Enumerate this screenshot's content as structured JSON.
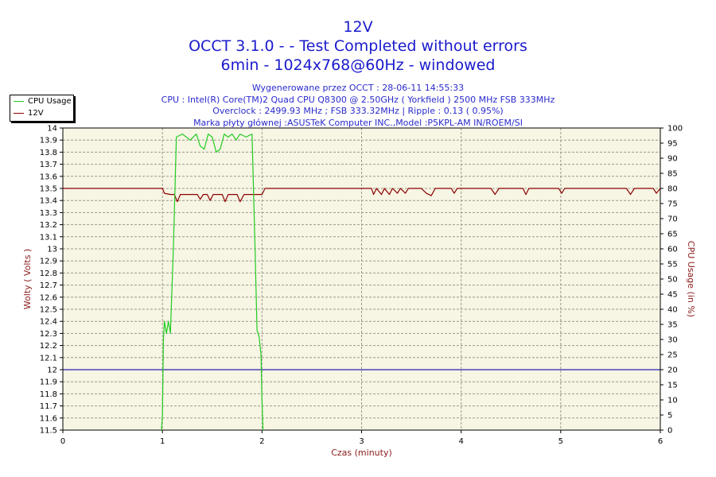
{
  "titles": {
    "line1": "12V",
    "line2": "OCCT 3.1.0 -  - Test Completed without errors",
    "line3": "6min - 1024x768@60Hz - windowed"
  },
  "info": {
    "generated": "Wygenerowane przez OCCT : 28-06-11 14:55:33",
    "cpu": "CPU : Intel(R) Core(TM)2 Quad CPU Q8300 @ 2.50GHz ( Yorkfield ) 2500 MHz FSB 333MHz",
    "overclock": "Overclock : 2499.93 MHz ; FSB 333.32MHz | Ripple : 0.13 ( 0.95%)",
    "motherboard": "Marka płyty głównej :ASUSTeK Computer INC.,Model :P5KPL-AM IN/ROEM/SI"
  },
  "legend": [
    {
      "label": "CPU Usage",
      "color": "#22cc22"
    },
    {
      "label": "12V",
      "color": "#8b0000"
    }
  ],
  "chart_data": {
    "type": "line",
    "xlabel": "Czas (minuty)",
    "ylabel_left": "Wolty ( Volts )",
    "ylabel_right": "CPU Usage (in %)",
    "xlim": [
      0,
      6
    ],
    "ylim_left": [
      11.5,
      14
    ],
    "ylim_right": [
      0,
      100
    ],
    "x_ticks": [
      "0",
      "1",
      "2",
      "3",
      "4",
      "5",
      "6"
    ],
    "y_ticks_left": [
      "11.5",
      "11.6",
      "11.7",
      "11.8",
      "11.9",
      "12",
      "12.1",
      "12.2",
      "12.3",
      "12.4",
      "12.5",
      "12.6",
      "12.7",
      "12.8",
      "12.9",
      "13",
      "13.1",
      "13.2",
      "13.3",
      "13.4",
      "13.5",
      "13.6",
      "13.7",
      "13.8",
      "13.9",
      "14"
    ],
    "y_ticks_right": [
      "0",
      "5",
      "10",
      "15",
      "20",
      "25",
      "30",
      "35",
      "40",
      "45",
      "50",
      "55",
      "60",
      "65",
      "70",
      "75",
      "80",
      "85",
      "90",
      "95",
      "100"
    ],
    "grid": true,
    "reference_line": {
      "axis": "left",
      "value": 12,
      "color": "#2222aa"
    },
    "series": [
      {
        "name": "12V",
        "axis": "left",
        "color": "#8b0000",
        "points": [
          [
            0,
            13.5
          ],
          [
            1,
            13.5
          ],
          [
            1.02,
            13.46
          ],
          [
            1.08,
            13.45
          ],
          [
            1.12,
            13.45
          ],
          [
            1.15,
            13.39
          ],
          [
            1.18,
            13.45
          ],
          [
            1.35,
            13.45
          ],
          [
            1.38,
            13.41
          ],
          [
            1.41,
            13.45
          ],
          [
            1.45,
            13.45
          ],
          [
            1.48,
            13.4
          ],
          [
            1.51,
            13.45
          ],
          [
            1.6,
            13.45
          ],
          [
            1.63,
            13.39
          ],
          [
            1.66,
            13.45
          ],
          [
            1.75,
            13.45
          ],
          [
            1.78,
            13.39
          ],
          [
            1.82,
            13.45
          ],
          [
            1.86,
            13.45
          ],
          [
            1.9,
            13.45
          ],
          [
            2.0,
            13.45
          ],
          [
            2.03,
            13.5
          ],
          [
            3.05,
            13.5
          ],
          [
            3.1,
            13.5
          ],
          [
            3.12,
            13.45
          ],
          [
            3.15,
            13.5
          ],
          [
            3.2,
            13.45
          ],
          [
            3.23,
            13.5
          ],
          [
            3.28,
            13.45
          ],
          [
            3.31,
            13.5
          ],
          [
            3.36,
            13.46
          ],
          [
            3.39,
            13.5
          ],
          [
            3.44,
            13.46
          ],
          [
            3.47,
            13.5
          ],
          [
            3.6,
            13.5
          ],
          [
            3.65,
            13.46
          ],
          [
            3.7,
            13.44
          ],
          [
            3.74,
            13.5
          ],
          [
            3.9,
            13.5
          ],
          [
            3.93,
            13.46
          ],
          [
            3.96,
            13.5
          ],
          [
            4.3,
            13.5
          ],
          [
            4.34,
            13.45
          ],
          [
            4.38,
            13.5
          ],
          [
            4.62,
            13.5
          ],
          [
            4.65,
            13.45
          ],
          [
            4.68,
            13.5
          ],
          [
            4.98,
            13.5
          ],
          [
            5.01,
            13.46
          ],
          [
            5.04,
            13.5
          ],
          [
            5.66,
            13.5
          ],
          [
            5.7,
            13.45
          ],
          [
            5.74,
            13.5
          ],
          [
            5.93,
            13.5
          ],
          [
            5.96,
            13.46
          ],
          [
            6.0,
            13.5
          ]
        ]
      },
      {
        "name": "CPU Usage",
        "axis": "right",
        "color": "#22cc22",
        "points": [
          [
            0.99,
            0
          ],
          [
            1.0,
            5
          ],
          [
            1.01,
            30
          ],
          [
            1.02,
            36
          ],
          [
            1.04,
            32
          ],
          [
            1.06,
            36
          ],
          [
            1.08,
            32
          ],
          [
            1.11,
            60
          ],
          [
            1.14,
            97
          ],
          [
            1.2,
            98
          ],
          [
            1.28,
            96
          ],
          [
            1.34,
            98
          ],
          [
            1.38,
            94
          ],
          [
            1.42,
            93
          ],
          [
            1.46,
            98
          ],
          [
            1.5,
            97
          ],
          [
            1.54,
            92
          ],
          [
            1.58,
            93
          ],
          [
            1.62,
            98
          ],
          [
            1.66,
            97
          ],
          [
            1.7,
            98
          ],
          [
            1.74,
            96
          ],
          [
            1.78,
            98
          ],
          [
            1.84,
            97
          ],
          [
            1.9,
            98
          ],
          [
            1.93,
            60
          ],
          [
            1.95,
            33
          ],
          [
            1.97,
            31
          ],
          [
            1.99,
            25
          ],
          [
            2.0,
            10
          ],
          [
            2.01,
            0
          ]
        ]
      }
    ]
  }
}
